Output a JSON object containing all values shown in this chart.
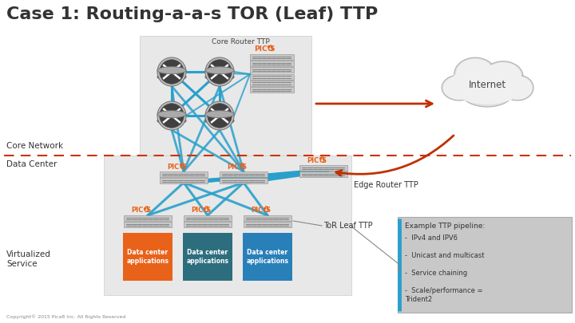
{
  "title": "Case 1: Routing-a-a-s TOR (Leaf) TTP",
  "title_fontsize": 16,
  "title_color": "#333333",
  "bg_color": "#ffffff",
  "label_core_router": "Core Router TTP",
  "label_internet": "Internet",
  "label_core_network": "Core Network",
  "label_data_center": "Data Center",
  "label_edge_router": "Edge Router TTP",
  "label_tor_leaf": "ToR Leaf TTP",
  "label_virtualized": "Virtualized\nService",
  "label_copyright": "Copyright© 2015 Pica8 Inc. All Rights Reserved",
  "pipeline_title": "Example TTP pipeline:",
  "pipeline_items": [
    "IPv4 and IPV6",
    "Unicast and multicast",
    "Service chaining",
    "Scale/performance =\nTrident2"
  ],
  "orange_color": "#e8621a",
  "blue_color": "#29a0cc",
  "dashed_line_color": "#cc3300",
  "dc_app_colors": [
    "#e8621a",
    "#2d6e7e",
    "#2980b9"
  ],
  "dc_app_border_colors": [
    "#e8621a",
    "#2d6e7e",
    "#2980b9"
  ]
}
